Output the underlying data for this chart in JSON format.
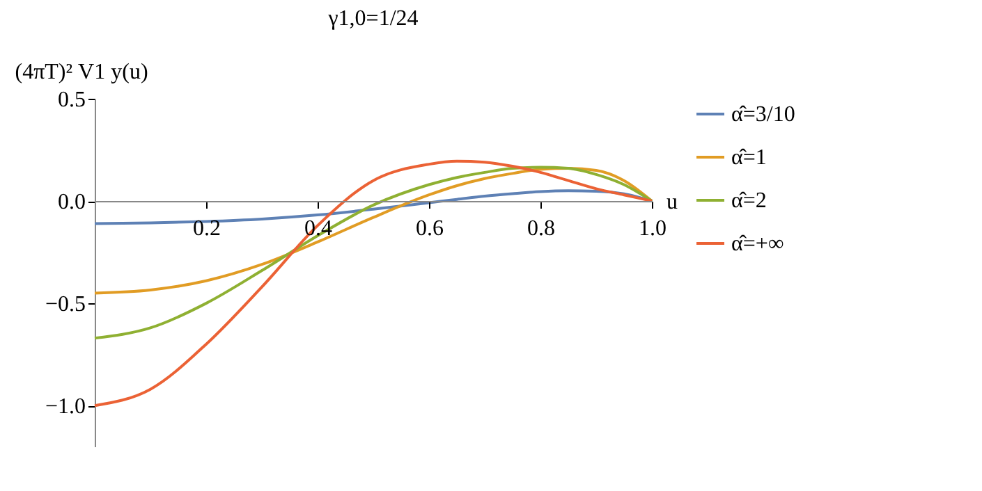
{
  "chart_data": {
    "type": "line",
    "title": "γ1,0=1/24",
    "xlabel": "u",
    "ylabel": "(4πT)² V1 y(u)",
    "xlim": [
      0,
      1
    ],
    "ylim": [
      -1.2,
      0.5
    ],
    "xticks": [
      {
        "value": 0.2,
        "label": "0.2"
      },
      {
        "value": 0.4,
        "label": "0.4"
      },
      {
        "value": 0.6,
        "label": "0.6"
      },
      {
        "value": 0.8,
        "label": "0.8"
      },
      {
        "value": 1,
        "label": "1.0"
      }
    ],
    "yticks": [
      {
        "value": -1,
        "label": "−1.0"
      },
      {
        "value": -0.5,
        "label": "−0.5"
      },
      {
        "value": 0,
        "label": "0.0"
      },
      {
        "value": 0.5,
        "label": "0.5"
      }
    ],
    "grid": false,
    "legend": "right",
    "line_style": "solid",
    "marker": "none",
    "x": [
      0,
      0.1,
      0.2,
      0.3,
      0.4,
      0.5,
      0.6,
      0.65,
      0.7,
      0.75,
      0.8,
      0.85,
      0.9,
      0.95,
      1.0
    ],
    "series": [
      {
        "name": "α̂=3/10",
        "color": "#5e81b5",
        "values": [
          -0.11,
          -0.107,
          -0.1,
          -0.088,
          -0.068,
          -0.04,
          -0.008,
          0.008,
          0.024,
          0.036,
          0.046,
          0.05,
          0.048,
          0.035,
          0
        ]
      },
      {
        "name": "α̂=1",
        "color": "#e19c24",
        "values": [
          -0.45,
          -0.435,
          -0.39,
          -0.31,
          -0.2,
          -0.08,
          0.03,
          0.075,
          0.11,
          0.135,
          0.155,
          0.16,
          0.15,
          0.1,
          0
        ]
      },
      {
        "name": "α̂=2",
        "color": "#8fb032",
        "values": [
          -0.67,
          -0.62,
          -0.5,
          -0.34,
          -0.17,
          -0.02,
          0.08,
          0.115,
          0.14,
          0.16,
          0.165,
          0.16,
          0.13,
          0.08,
          0
        ]
      },
      {
        "name": "α̂=+∞",
        "color": "#eb6235",
        "values": [
          -1.0,
          -0.92,
          -0.7,
          -0.42,
          -0.12,
          0.1,
          0.18,
          0.195,
          0.19,
          0.17,
          0.14,
          0.1,
          0.06,
          0.03,
          0
        ]
      }
    ]
  }
}
